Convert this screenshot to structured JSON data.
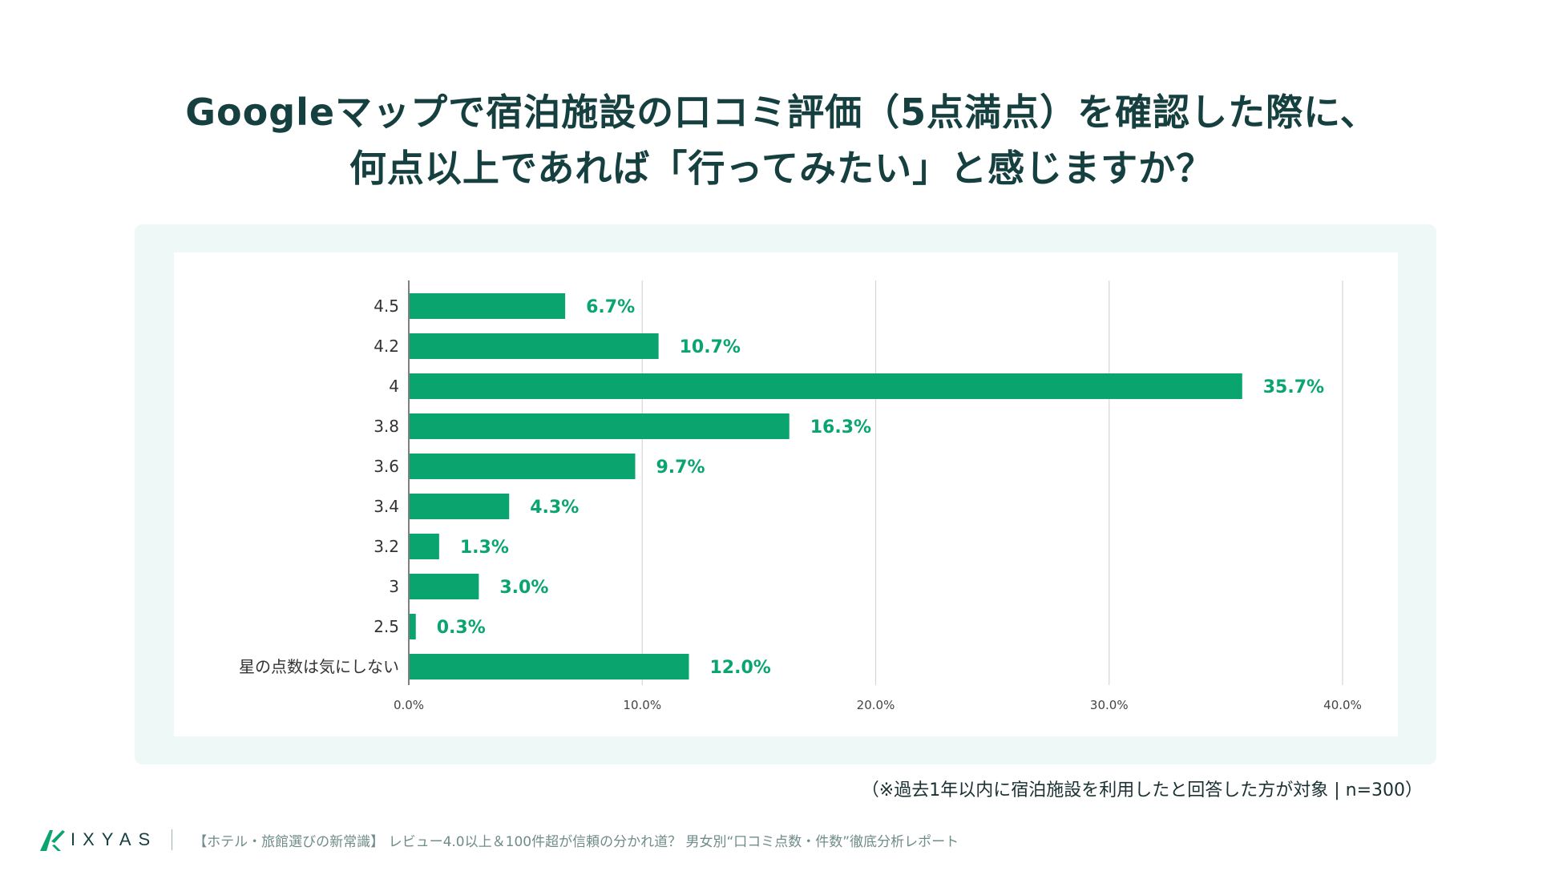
{
  "title": {
    "line1": "Googleマップで宿泊施設の口コミ評価（5点満点）を確認した際に、",
    "line2": "何点以上であれば「行ってみたい」と感じますか？"
  },
  "chart_data": {
    "type": "bar",
    "orientation": "horizontal",
    "categories": [
      "4.5",
      "4.2",
      "4",
      "3.8",
      "3.6",
      "3.4",
      "3.2",
      "3",
      "2.5",
      "星の点数は気にしない"
    ],
    "values": [
      6.7,
      10.7,
      35.7,
      16.3,
      9.7,
      4.3,
      1.3,
      3.0,
      0.3,
      12.0
    ],
    "value_labels": [
      "6.7%",
      "10.7%",
      "35.7%",
      "16.3%",
      "9.7%",
      "4.3%",
      "1.3%",
      "3.0%",
      "0.3%",
      "12.0%"
    ],
    "x_ticks": [
      0,
      10,
      20,
      30,
      40
    ],
    "x_tick_labels": [
      "0.0%",
      "10.0%",
      "20.0%",
      "30.0%",
      "40.0%"
    ],
    "xlim": [
      0,
      40
    ],
    "grid": true,
    "bar_color": "#0aa56f",
    "label_color": "#0aa56f"
  },
  "note": "（※過去1年以内に宿泊施設を利用したと回答した方が対象 | n=300）",
  "footer": {
    "logo_text": "IXYAS",
    "text": "【ホテル・旅館選びの新常識】 レビュー4.0以上＆100件超が信頼の分かれ道？  男女別“口コミ点数・件数”徹底分析レポート"
  },
  "colors": {
    "accent": "#0aa56f",
    "title": "#16403f",
    "panel": "#eef8f7"
  }
}
